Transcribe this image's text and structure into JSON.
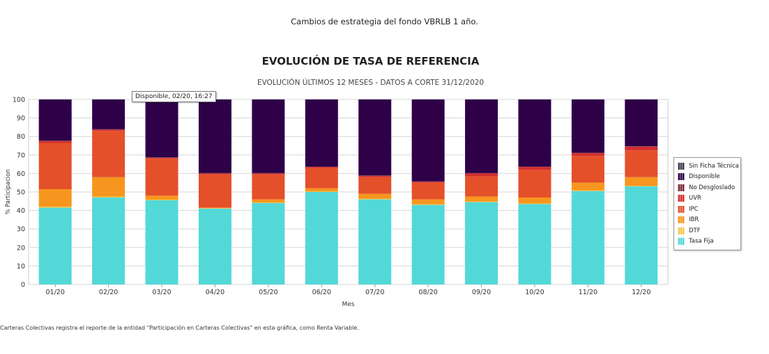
{
  "page": {
    "caption": "Cambios de estrategia del fondo VBRLB 1 año.",
    "footnote": "Carteras Colectivas registra el reporte de la entidad \"Participación en Carteras Colectivas\" en esta gráfica, como Renta Variable."
  },
  "tooltip": {
    "text": "Disponible, 02/20, 16:27"
  },
  "chart_data": {
    "type": "bar",
    "stacked": true,
    "title": "EVOLUCIÓN DE TASA DE REFERENCIA",
    "subtitle": "EVOLUCIÓN ÚLTIMOS 12 MESES - DATOS A CORTE 31/12/2020",
    "xlabel": "Mes",
    "ylabel": "% Participacion",
    "ylim": [
      0,
      100
    ],
    "yticks": [
      0,
      10,
      20,
      30,
      40,
      50,
      60,
      70,
      80,
      90,
      100
    ],
    "grid": true,
    "legend_position": "right",
    "categories": [
      "01/20",
      "02/20",
      "03/20",
      "04/20",
      "05/20",
      "06/20",
      "07/20",
      "08/20",
      "09/20",
      "10/20",
      "11/20",
      "12/20"
    ],
    "series": [
      {
        "name": "Tasa Fija",
        "color": "#53d8d8",
        "values": [
          41.5,
          47.0,
          45.5,
          41.0,
          44.0,
          50.0,
          46.0,
          43.0,
          44.5,
          43.5,
          50.5,
          53.0
        ]
      },
      {
        "name": "DTF",
        "color": "#f2c94c",
        "values": [
          0.5,
          0.5,
          0.3,
          0.3,
          0.3,
          0.3,
          0.3,
          0.3,
          0.3,
          0.3,
          0.3,
          0.3
        ]
      },
      {
        "name": "IBR",
        "color": "#f7961e",
        "values": [
          9.5,
          10.5,
          2.2,
          0.2,
          1.7,
          1.7,
          2.7,
          2.7,
          2.7,
          3.2,
          4.2,
          4.7
        ]
      },
      {
        "name": "IPC",
        "color": "#e4502a",
        "values": [
          25.0,
          25.0,
          20.0,
          18.0,
          13.5,
          11.0,
          9.0,
          9.0,
          11.0,
          15.0,
          14.5,
          14.5
        ]
      },
      {
        "name": "UVR",
        "color": "#d22e2e",
        "values": [
          1.0,
          0.7,
          0.5,
          0.5,
          0.5,
          0.5,
          0.7,
          0.5,
          1.5,
          1.5,
          1.5,
          2.0
        ]
      },
      {
        "name": "No Desgloslado",
        "color": "#7a2b3a",
        "values": [
          0.2,
          0.2,
          0.2,
          0.2,
          0.2,
          0.2,
          0.2,
          0.2,
          0.2,
          0.2,
          0.2,
          0.2
        ]
      },
      {
        "name": "Disponible",
        "color": "#2e0048",
        "values": [
          22.3,
          16.1,
          31.3,
          39.8,
          39.8,
          36.3,
          41.1,
          44.3,
          39.8,
          36.3,
          28.8,
          25.3
        ]
      },
      {
        "name": "Sin Ficha Técnica",
        "color": "#3d3d4d",
        "values": [
          0,
          0,
          0,
          0,
          0,
          0,
          0,
          0,
          0,
          0,
          0,
          0
        ]
      }
    ],
    "legend_order": [
      "Sin Ficha Técnica",
      "Disponible",
      "No Desgloslado",
      "UVR",
      "IPC",
      "IBR",
      "DTF",
      "Tasa Fija"
    ]
  }
}
